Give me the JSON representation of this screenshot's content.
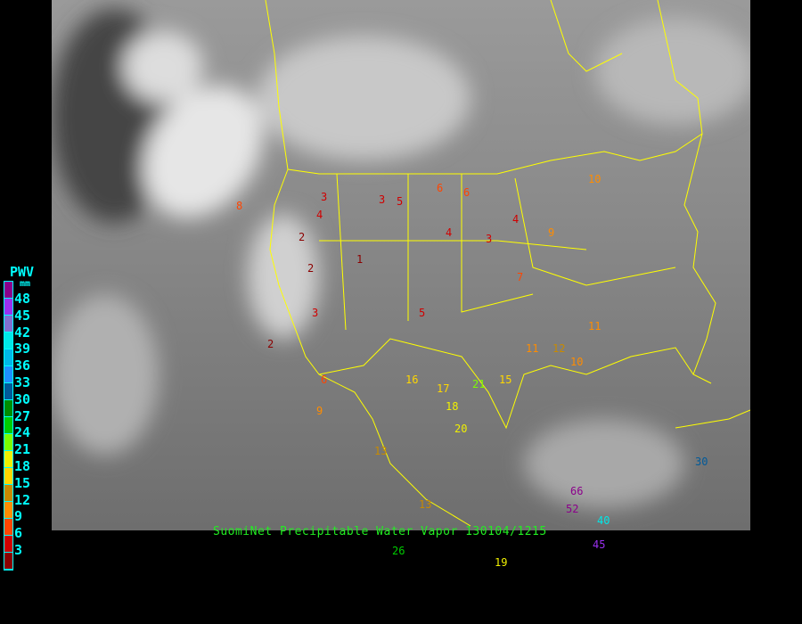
{
  "caption": "SuomiNet Precipitable Water Vapor 130104/1215",
  "legend": {
    "title": "PWV",
    "unit": "mm",
    "labels": [
      "48",
      "45",
      "42",
      "39",
      "36",
      "33",
      "30",
      "27",
      "24",
      "21",
      "18",
      "15",
      "12",
      "9",
      "6",
      "3"
    ],
    "colors": [
      "#8b008b",
      "#9a30f0",
      "#8070d0",
      "#00e8e8",
      "#00b8e8",
      "#1e90ff",
      "#005a9a",
      "#008c00",
      "#00cc00",
      "#7cfc00",
      "#f0f000",
      "#ffd700",
      "#c88a00",
      "#ff8c00",
      "#ff4500",
      "#d00000",
      "#8b0000"
    ]
  },
  "stations": [
    "3",
    "5",
    "6",
    "4",
    "3",
    "2",
    "1",
    "2",
    "4",
    "3",
    "5",
    "6",
    "4",
    "2",
    "3",
    "7",
    "8",
    "9",
    "10",
    "11",
    "12",
    "13",
    "15",
    "16",
    "17",
    "18",
    "20",
    "21",
    "19",
    "26",
    "45",
    "52",
    "66",
    "40",
    "30",
    "11",
    "10",
    "6",
    "9",
    "13"
  ]
}
